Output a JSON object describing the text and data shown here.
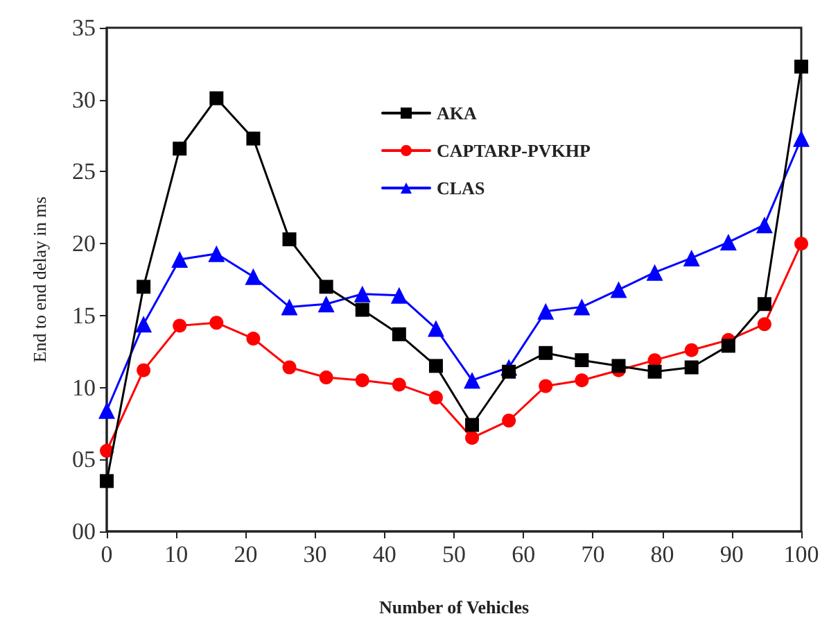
{
  "chart_data": {
    "type": "line",
    "xlabel": "Number of Vehicles",
    "ylabel": "End to end delay in ms",
    "x": [
      0,
      5.3,
      10.5,
      15.8,
      21.1,
      26.3,
      31.6,
      36.8,
      42.1,
      47.4,
      52.6,
      57.9,
      63.2,
      68.4,
      73.7,
      78.9,
      84.2,
      89.5,
      94.7,
      100
    ],
    "xlim": [
      0,
      100
    ],
    "xticks": [
      0,
      10,
      20,
      30,
      40,
      50,
      60,
      70,
      80,
      90,
      100
    ],
    "ylim": [
      0,
      35
    ],
    "yticks": [
      {
        "value": 0,
        "label": "00"
      },
      {
        "value": 5,
        "label": "05"
      },
      10,
      15,
      20,
      25,
      30,
      35
    ],
    "grid": false,
    "legend": "top",
    "line_style": "solid",
    "series": [
      {
        "name": "AKA",
        "color": "#000000",
        "marker": "square",
        "values": [
          3.5,
          17,
          26.6,
          30.1,
          27.3,
          20.3,
          17,
          15.4,
          13.7,
          11.5,
          7.4,
          11.1,
          12.4,
          11.9,
          11.5,
          11.1,
          11.4,
          12.9,
          15.8,
          32.3
        ]
      },
      {
        "name": "CAPTARP-PVKHP",
        "color": "#ff0000",
        "marker": "circle",
        "values": [
          5.6,
          11.2,
          14.3,
          14.5,
          13.4,
          11.4,
          10.7,
          10.5,
          10.2,
          9.3,
          6.5,
          7.7,
          10.1,
          10.5,
          11.2,
          11.9,
          12.6,
          13.3,
          14.4,
          20
        ]
      },
      {
        "name": "CLAS",
        "color": "#0000ff",
        "marker": "triangle",
        "values": [
          8.4,
          14.4,
          18.9,
          19.3,
          17.7,
          15.6,
          15.8,
          16.5,
          16.4,
          14.1,
          10.5,
          11.4,
          15.3,
          15.6,
          16.8,
          18,
          19,
          20.1,
          21.3,
          27.3
        ]
      }
    ]
  }
}
